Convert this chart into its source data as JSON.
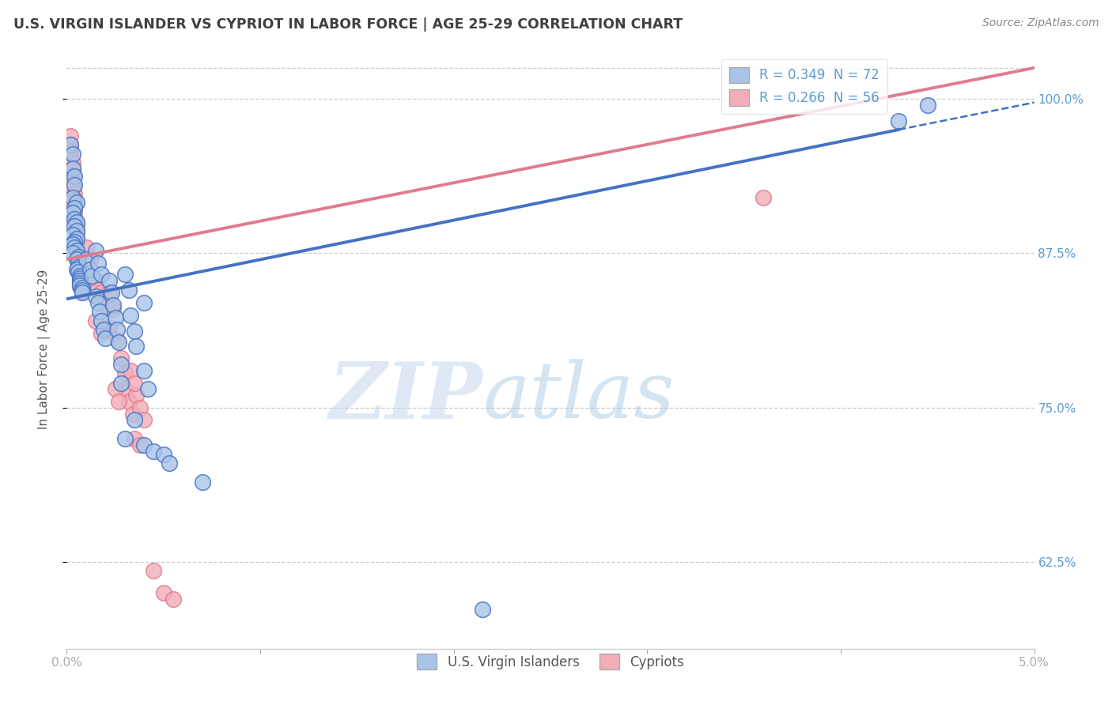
{
  "title": "U.S. VIRGIN ISLANDER VS CYPRIOT IN LABOR FORCE | AGE 25-29 CORRELATION CHART",
  "source": "Source: ZipAtlas.com",
  "ylabel": "In Labor Force | Age 25-29",
  "xlim": [
    0.0,
    0.05
  ],
  "ylim": [
    0.555,
    1.04
  ],
  "xticks": [
    0.0,
    0.01,
    0.02,
    0.03,
    0.04,
    0.05
  ],
  "xtick_labels": [
    "0.0%",
    "",
    "",
    "",
    "",
    "5.0%"
  ],
  "ytick_labels": [
    "62.5%",
    "75.0%",
    "87.5%",
    "100.0%"
  ],
  "yticks": [
    0.625,
    0.75,
    0.875,
    1.0
  ],
  "legend_entries": [
    {
      "label": "R = 0.349  N = 72",
      "color": "#aec6e8"
    },
    {
      "label": "R = 0.266  N = 56",
      "color": "#f4a7b3"
    }
  ],
  "legend_labels_bottom": [
    "U.S. Virgin Islanders",
    "Cypriots"
  ],
  "blue_color": "#4472c4",
  "pink_color": "#e07b8e",
  "blue_fill": "#a8c4e8",
  "pink_fill": "#f2adb8",
  "watermark_zip": "ZIP",
  "watermark_atlas": "atlas",
  "title_color": "#404040",
  "axis_color": "#5b9bd5",
  "grid_color": "#c8c8c8",
  "blue_scatter": [
    [
      0.0002,
      0.963
    ],
    [
      0.0003,
      0.955
    ],
    [
      0.0003,
      0.944
    ],
    [
      0.0004,
      0.937
    ],
    [
      0.0004,
      0.93
    ],
    [
      0.0003,
      0.92
    ],
    [
      0.0005,
      0.916
    ],
    [
      0.0004,
      0.912
    ],
    [
      0.0003,
      0.908
    ],
    [
      0.0004,
      0.903
    ],
    [
      0.0005,
      0.9
    ],
    [
      0.0004,
      0.897
    ],
    [
      0.0005,
      0.893
    ],
    [
      0.0003,
      0.89
    ],
    [
      0.0005,
      0.887
    ],
    [
      0.0004,
      0.884
    ],
    [
      0.0003,
      0.882
    ],
    [
      0.0004,
      0.88
    ],
    [
      0.0005,
      0.877
    ],
    [
      0.0003,
      0.875
    ],
    [
      0.0006,
      0.872
    ],
    [
      0.0005,
      0.87
    ],
    [
      0.0006,
      0.867
    ],
    [
      0.0006,
      0.864
    ],
    [
      0.0005,
      0.862
    ],
    [
      0.0006,
      0.86
    ],
    [
      0.0007,
      0.857
    ],
    [
      0.0007,
      0.855
    ],
    [
      0.0007,
      0.853
    ],
    [
      0.0007,
      0.851
    ],
    [
      0.0007,
      0.849
    ],
    [
      0.0008,
      0.847
    ],
    [
      0.0008,
      0.845
    ],
    [
      0.0008,
      0.843
    ],
    [
      0.001,
      0.87
    ],
    [
      0.0012,
      0.862
    ],
    [
      0.0013,
      0.857
    ],
    [
      0.0015,
      0.877
    ],
    [
      0.0016,
      0.867
    ],
    [
      0.0018,
      0.858
    ],
    [
      0.0015,
      0.84
    ],
    [
      0.0016,
      0.835
    ],
    [
      0.0017,
      0.828
    ],
    [
      0.0018,
      0.82
    ],
    [
      0.0019,
      0.813
    ],
    [
      0.002,
      0.806
    ],
    [
      0.0022,
      0.853
    ],
    [
      0.0023,
      0.843
    ],
    [
      0.0024,
      0.833
    ],
    [
      0.0025,
      0.823
    ],
    [
      0.0026,
      0.813
    ],
    [
      0.0027,
      0.803
    ],
    [
      0.003,
      0.858
    ],
    [
      0.0032,
      0.845
    ],
    [
      0.0033,
      0.825
    ],
    [
      0.0035,
      0.812
    ],
    [
      0.0036,
      0.8
    ],
    [
      0.004,
      0.835
    ],
    [
      0.004,
      0.78
    ],
    [
      0.0042,
      0.765
    ],
    [
      0.0028,
      0.785
    ],
    [
      0.0028,
      0.77
    ],
    [
      0.0035,
      0.74
    ],
    [
      0.004,
      0.72
    ],
    [
      0.003,
      0.725
    ],
    [
      0.0045,
      0.715
    ],
    [
      0.005,
      0.712
    ],
    [
      0.0053,
      0.705
    ],
    [
      0.007,
      0.69
    ],
    [
      0.0215,
      0.587
    ],
    [
      0.043,
      0.982
    ],
    [
      0.0445,
      0.995
    ]
  ],
  "pink_scatter": [
    [
      0.0002,
      0.97
    ],
    [
      0.0002,
      0.963
    ],
    [
      0.0002,
      0.958
    ],
    [
      0.0002,
      0.953
    ],
    [
      0.0003,
      0.948
    ],
    [
      0.0003,
      0.943
    ],
    [
      0.0003,
      0.938
    ],
    [
      0.0003,
      0.933
    ],
    [
      0.0003,
      0.928
    ],
    [
      0.0004,
      0.923
    ],
    [
      0.0004,
      0.918
    ],
    [
      0.0004,
      0.913
    ],
    [
      0.0004,
      0.908
    ],
    [
      0.0004,
      0.903
    ],
    [
      0.0005,
      0.898
    ],
    [
      0.0005,
      0.893
    ],
    [
      0.0005,
      0.888
    ],
    [
      0.0005,
      0.883
    ],
    [
      0.0005,
      0.878
    ],
    [
      0.0006,
      0.873
    ],
    [
      0.0006,
      0.868
    ],
    [
      0.0006,
      0.863
    ],
    [
      0.0007,
      0.858
    ],
    [
      0.0007,
      0.853
    ],
    [
      0.0007,
      0.848
    ],
    [
      0.0008,
      0.843
    ],
    [
      0.001,
      0.88
    ],
    [
      0.0012,
      0.87
    ],
    [
      0.0014,
      0.855
    ],
    [
      0.0016,
      0.845
    ],
    [
      0.0018,
      0.843
    ],
    [
      0.002,
      0.833
    ],
    [
      0.0015,
      0.82
    ],
    [
      0.0018,
      0.81
    ],
    [
      0.0022,
      0.843
    ],
    [
      0.0024,
      0.83
    ],
    [
      0.0022,
      0.815
    ],
    [
      0.0026,
      0.805
    ],
    [
      0.0028,
      0.79
    ],
    [
      0.003,
      0.778
    ],
    [
      0.003,
      0.765
    ],
    [
      0.0032,
      0.755
    ],
    [
      0.0034,
      0.745
    ],
    [
      0.0036,
      0.76
    ],
    [
      0.0038,
      0.75
    ],
    [
      0.004,
      0.74
    ],
    [
      0.0035,
      0.725
    ],
    [
      0.0038,
      0.72
    ],
    [
      0.0025,
      0.765
    ],
    [
      0.0027,
      0.755
    ],
    [
      0.0033,
      0.78
    ],
    [
      0.0035,
      0.77
    ],
    [
      0.005,
      0.6
    ],
    [
      0.0055,
      0.595
    ],
    [
      0.0045,
      0.618
    ],
    [
      0.036,
      0.92
    ]
  ],
  "blue_line_solid": [
    [
      0.0,
      0.838
    ],
    [
      0.043,
      0.975
    ]
  ],
  "blue_line_dashed": [
    [
      0.043,
      0.975
    ],
    [
      0.05,
      0.997
    ]
  ],
  "pink_line": [
    [
      0.0,
      0.87
    ],
    [
      0.05,
      1.025
    ]
  ]
}
